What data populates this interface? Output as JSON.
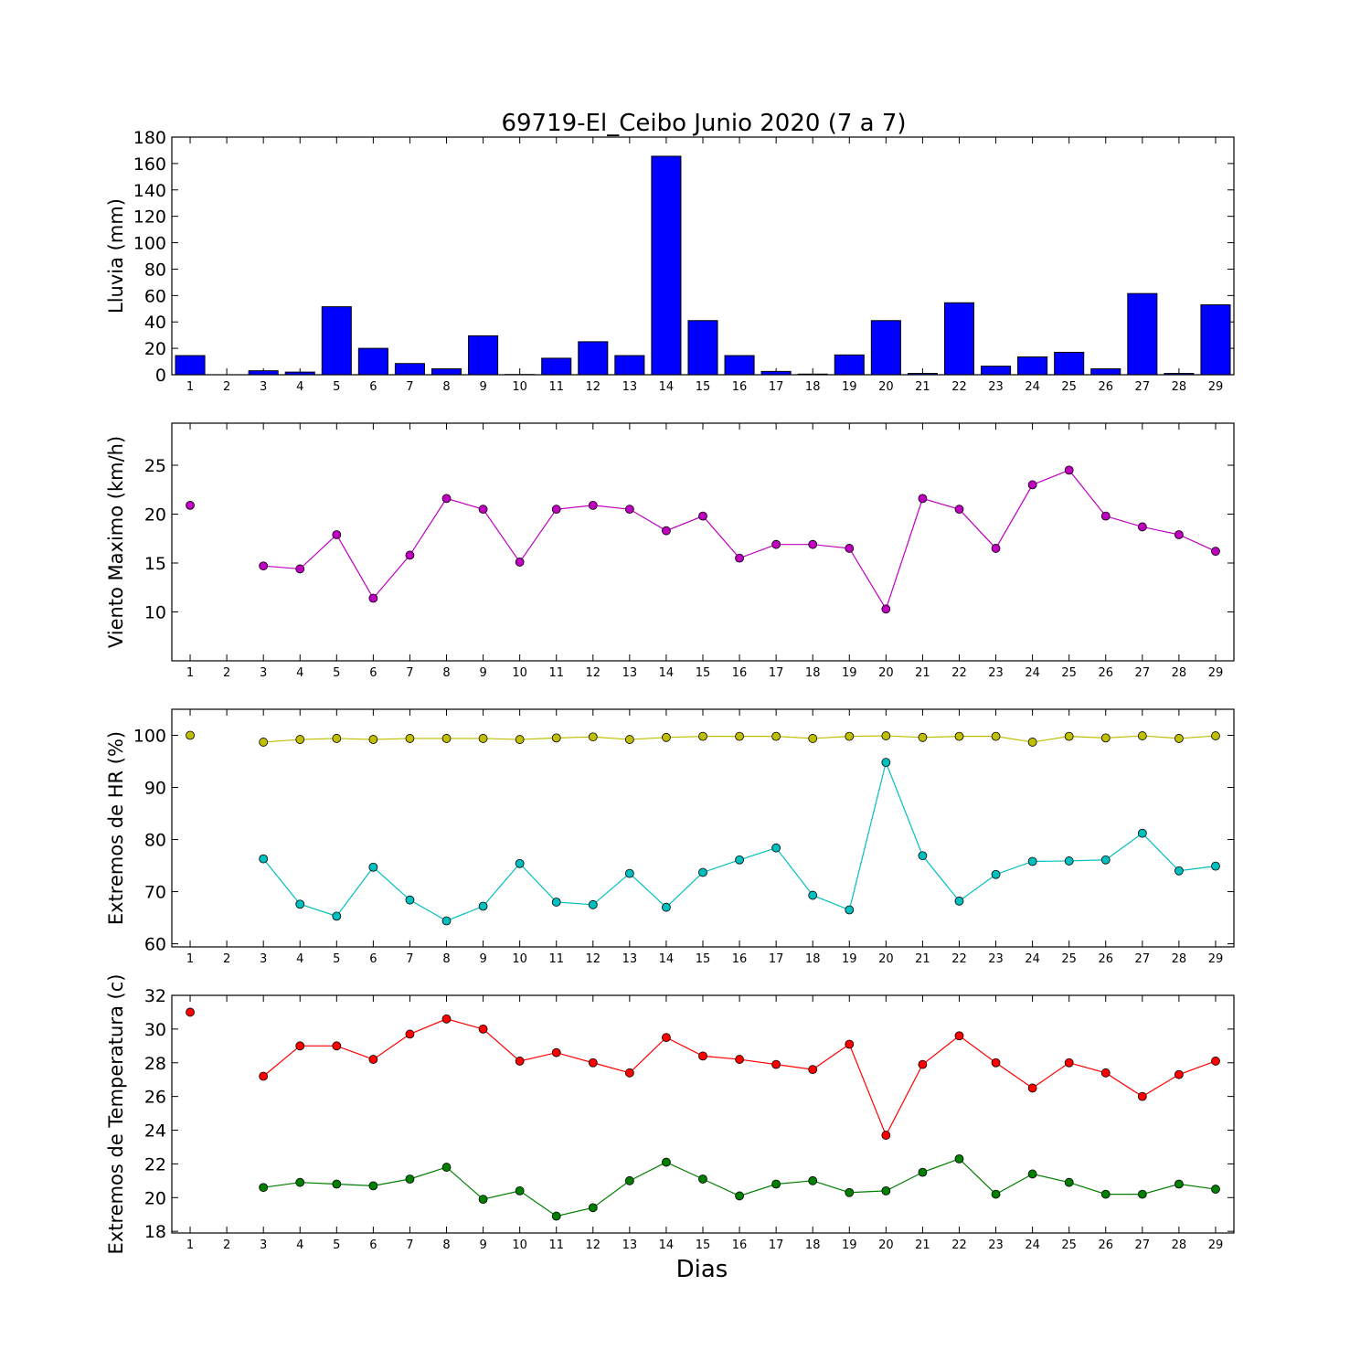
{
  "title": "69719-El_Ceibo Junio 2020  (7 a 7)",
  "xlabel": "Dias",
  "chart_data": [
    {
      "type": "bar",
      "ylabel": "Lluvia (mm)",
      "ylim": [
        0,
        180
      ],
      "yticks": [
        0,
        20,
        40,
        60,
        80,
        100,
        120,
        140,
        160,
        180
      ],
      "x": [
        1,
        2,
        3,
        4,
        5,
        6,
        7,
        8,
        9,
        10,
        11,
        12,
        13,
        14,
        15,
        16,
        17,
        18,
        19,
        20,
        21,
        22,
        23,
        24,
        25,
        26,
        27,
        28,
        29
      ],
      "xlim": [
        0.5,
        29.5
      ],
      "colors": [
        "#0000ff"
      ],
      "series": [
        {
          "values": [
            14.5,
            0,
            3,
            2,
            51.5,
            20,
            8.5,
            4.5,
            29.5,
            0.2,
            12.5,
            25,
            14.5,
            165.5,
            41,
            14.5,
            2.5,
            0.5,
            15,
            41,
            1,
            54.5,
            6.5,
            13.5,
            17,
            4.5,
            61.5,
            1,
            53
          ]
        }
      ]
    },
    {
      "type": "line",
      "ylabel": "Viento Maximo (km/h)",
      "ylim": [
        5,
        29.3
      ],
      "yticks": [
        10,
        15,
        20,
        25
      ],
      "x": [
        1,
        2,
        3,
        4,
        5,
        6,
        7,
        8,
        9,
        10,
        11,
        12,
        13,
        14,
        15,
        16,
        17,
        18,
        19,
        20,
        21,
        22,
        23,
        24,
        25,
        26,
        27,
        28,
        29
      ],
      "xlim": [
        0.5,
        29.5
      ],
      "colors": [
        "#bf00bf"
      ],
      "series": [
        {
          "values": [
            20.9,
            null,
            14.7,
            14.4,
            17.9,
            11.4,
            15.8,
            21.6,
            20.5,
            15.1,
            20.5,
            20.9,
            20.5,
            18.3,
            19.8,
            15.5,
            16.9,
            16.9,
            16.5,
            10.3,
            21.6,
            20.5,
            16.5,
            23.0,
            24.5,
            19.8,
            18.7,
            17.9,
            16.2
          ]
        }
      ]
    },
    {
      "type": "line",
      "ylabel": "Extremos de HR (%)",
      "ylim": [
        59.4,
        105
      ],
      "yticks": [
        60,
        70,
        80,
        90,
        100
      ],
      "x": [
        1,
        2,
        3,
        4,
        5,
        6,
        7,
        8,
        9,
        10,
        11,
        12,
        13,
        14,
        15,
        16,
        17,
        18,
        19,
        20,
        21,
        22,
        23,
        24,
        25,
        26,
        27,
        28,
        29
      ],
      "xlim": [
        0.5,
        29.5
      ],
      "colors": [
        "#bfbf00",
        "#00bfbf"
      ],
      "series": [
        {
          "values": [
            100,
            null,
            98.7,
            99.2,
            99.4,
            99.2,
            99.4,
            99.4,
            99.4,
            99.2,
            99.5,
            99.7,
            99.2,
            99.6,
            99.8,
            99.8,
            99.8,
            99.4,
            99.8,
            99.9,
            99.6,
            99.8,
            99.8,
            98.7,
            99.8,
            99.5,
            99.9,
            99.4,
            99.9
          ]
        },
        {
          "values": [
            null,
            null,
            76.3,
            67.6,
            65.3,
            74.7,
            68.4,
            64.4,
            67.2,
            75.4,
            68.0,
            67.5,
            73.5,
            67.0,
            73.7,
            76.1,
            78.4,
            69.3,
            66.5,
            94.8,
            76.9,
            68.2,
            73.3,
            75.8,
            75.9,
            76.1,
            81.2,
            74.0,
            74.9
          ]
        }
      ]
    },
    {
      "type": "line",
      "ylabel": "Extremos de Temperatura (c)",
      "ylim": [
        17.9,
        32
      ],
      "yticks": [
        18,
        20,
        22,
        24,
        26,
        28,
        30,
        32
      ],
      "x": [
        1,
        2,
        3,
        4,
        5,
        6,
        7,
        8,
        9,
        10,
        11,
        12,
        13,
        14,
        15,
        16,
        17,
        18,
        19,
        20,
        21,
        22,
        23,
        24,
        25,
        26,
        27,
        28,
        29
      ],
      "xlim": [
        0.5,
        29.5
      ],
      "colors": [
        "#ff0000",
        "#007f00"
      ],
      "series": [
        {
          "values": [
            31.0,
            null,
            27.2,
            29.0,
            29.0,
            28.2,
            29.7,
            30.6,
            30.0,
            28.1,
            28.6,
            28.0,
            27.4,
            29.5,
            28.4,
            28.2,
            27.9,
            27.6,
            29.1,
            23.7,
            27.9,
            29.6,
            28.0,
            26.5,
            28.0,
            27.4,
            26.0,
            27.3,
            28.1
          ]
        },
        {
          "values": [
            null,
            null,
            20.6,
            20.9,
            20.8,
            20.7,
            21.1,
            21.8,
            19.9,
            20.4,
            18.9,
            19.4,
            21.0,
            22.1,
            21.1,
            20.1,
            20.8,
            21.0,
            20.3,
            20.4,
            21.5,
            22.3,
            20.2,
            21.4,
            20.9,
            20.2,
            20.2,
            20.8,
            20.5
          ]
        }
      ]
    }
  ]
}
